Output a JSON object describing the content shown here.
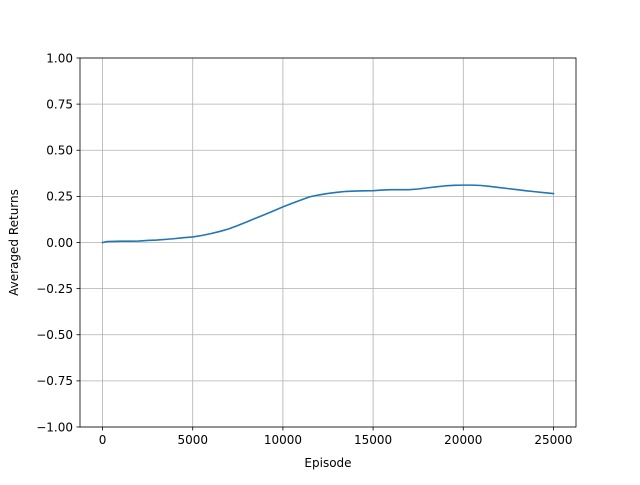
{
  "colors": {
    "line": "#1f77b4",
    "grid": "#b0b0b0",
    "axes": "#000000",
    "background": "#ffffff"
  },
  "chart_data": {
    "type": "line",
    "title": "",
    "xlabel": "Episode",
    "ylabel": "Averaged Returns",
    "xlim": [
      -1250,
      26250
    ],
    "ylim": [
      -1.0,
      1.0
    ],
    "grid": true,
    "legend": "none",
    "x_ticks": [
      0,
      5000,
      10000,
      15000,
      20000,
      25000
    ],
    "x_tick_labels": [
      "0",
      "5000",
      "10000",
      "15000",
      "20000",
      "25000"
    ],
    "y_ticks": [
      -1.0,
      -0.75,
      -0.5,
      -0.25,
      0.0,
      0.25,
      0.5,
      0.75,
      1.0
    ],
    "y_tick_labels": [
      "−1.00",
      "−0.75",
      "−0.50",
      "−0.25",
      "0.00",
      "0.25",
      "0.50",
      "0.75",
      "1.00"
    ],
    "series": [
      {
        "x": [
          0,
          250,
          500,
          1000,
          1500,
          2000,
          2500,
          3000,
          3500,
          4000,
          4500,
          5000,
          5500,
          6000,
          6500,
          7000,
          7500,
          8000,
          8500,
          9000,
          9500,
          10000,
          10500,
          11000,
          11500,
          12000,
          12500,
          13000,
          13500,
          14000,
          14500,
          15000,
          15500,
          16000,
          16500,
          17000,
          17500,
          18000,
          18500,
          19000,
          19500,
          20000,
          20500,
          21000,
          21500,
          22000,
          22500,
          23000,
          23500,
          24000,
          24500,
          25000
        ],
        "y": [
          0.0,
          0.005,
          0.006,
          0.007,
          0.007,
          0.008,
          0.011,
          0.013,
          0.017,
          0.021,
          0.026,
          0.03,
          0.038,
          0.048,
          0.06,
          0.074,
          0.092,
          0.112,
          0.132,
          0.152,
          0.172,
          0.193,
          0.212,
          0.23,
          0.248,
          0.258,
          0.266,
          0.272,
          0.277,
          0.279,
          0.28,
          0.281,
          0.284,
          0.286,
          0.286,
          0.286,
          0.29,
          0.296,
          0.302,
          0.307,
          0.31,
          0.311,
          0.311,
          0.309,
          0.304,
          0.298,
          0.292,
          0.286,
          0.28,
          0.275,
          0.27,
          0.265
        ]
      }
    ]
  }
}
